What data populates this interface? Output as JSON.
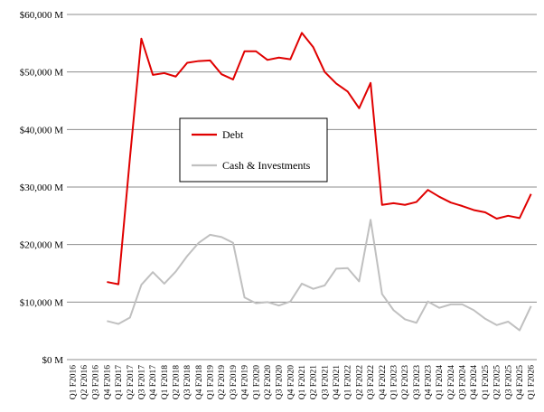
{
  "chart_data": {
    "type": "line",
    "title": "",
    "xlabel": "",
    "ylabel": "",
    "ylim": [
      0,
      60000
    ],
    "yticks": [
      0,
      10000,
      20000,
      30000,
      40000,
      50000,
      60000
    ],
    "ytick_labels": [
      "$0 M",
      "$10,000 M",
      "$20,000 M",
      "$30,000 M",
      "$40,000 M",
      "$50,000 M",
      "$60,000 M"
    ],
    "grid": "horizontal",
    "legend": "center-left",
    "categories": [
      "Q1 F2016",
      "Q2 F2016",
      "Q3 F2016",
      "Q4 F2016",
      "Q1 F2017",
      "Q2 F2017",
      "Q3 F2017",
      "Q4 F2017",
      "Q1 F2018",
      "Q2 F2018",
      "Q3 F2018",
      "Q4 F2018",
      "Q1 F2019",
      "Q2 F2019",
      "Q3 F2019",
      "Q4 F2019",
      "Q1 F2020",
      "Q2 F2020",
      "Q3 F2020",
      "Q4 F2020",
      "Q1 F2021",
      "Q2 F2021",
      "Q3 F2021",
      "Q4 F2021",
      "Q1 F2022",
      "Q2 F2022",
      "Q3 F2022",
      "Q4 F2022",
      "Q1 F2023",
      "Q2 F2023",
      "Q3 F2023",
      "Q4 F2023",
      "Q1 F2024",
      "Q2 F2024",
      "Q3 F2024",
      "Q4 F2024",
      "Q1 F2025",
      "Q2 F2025",
      "Q3 F2025",
      "Q4 F2025",
      "Q1 F2026"
    ],
    "series": [
      {
        "name": "Debt",
        "color": "#e00000",
        "values": [
          null,
          null,
          null,
          13500,
          13100,
          35000,
          55800,
          49500,
          49800,
          49200,
          51600,
          51900,
          52000,
          49600,
          48700,
          53600,
          53600,
          52100,
          52500,
          52200,
          56800,
          54300,
          50000,
          48000,
          46600,
          43700,
          48100,
          26900,
          27200,
          26900,
          27400,
          29500,
          28300,
          27300,
          26700,
          26000,
          25600,
          24500,
          25000,
          24600,
          28800
        ]
      },
      {
        "name": "Cash & Investments",
        "color": "#c0c0c0",
        "values": [
          null,
          null,
          null,
          6700,
          6200,
          7300,
          13000,
          15200,
          13200,
          15300,
          18000,
          20300,
          21700,
          21300,
          20300,
          10800,
          9800,
          10000,
          9400,
          10100,
          13200,
          12300,
          12900,
          15800,
          15900,
          13600,
          24300,
          11400,
          8600,
          7000,
          6400,
          10100,
          9000,
          9600,
          9600,
          8600,
          7100,
          6000,
          6600,
          5100,
          9300
        ]
      }
    ]
  }
}
